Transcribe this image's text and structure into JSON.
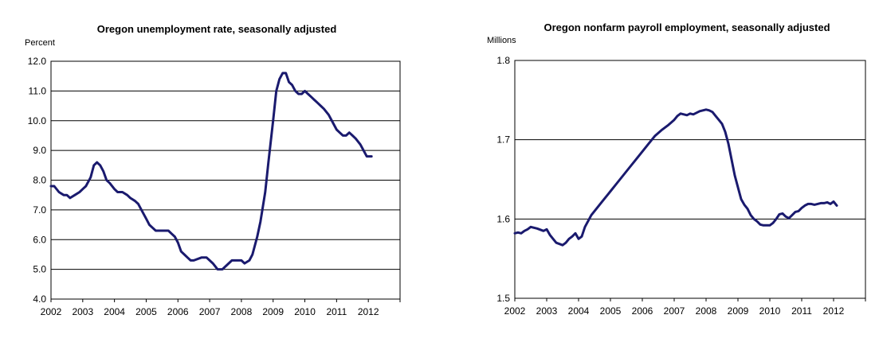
{
  "chart_data": [
    {
      "type": "line",
      "title": "Oregon unemployment rate, seasonally adjusted",
      "ylabel": "Percent",
      "xlabel": "",
      "ylim": [
        4.0,
        12.0
      ],
      "xlim": [
        2002,
        2013
      ],
      "yticks": [
        4.0,
        5.0,
        6.0,
        7.0,
        8.0,
        9.0,
        10.0,
        11.0,
        12.0
      ],
      "ytick_labels": [
        "4.0",
        "5.0",
        "6.0",
        "7.0",
        "8.0",
        "9.0",
        "10.0",
        "11.0",
        "12.0"
      ],
      "xticks": [
        2002,
        2003,
        2004,
        2005,
        2006,
        2007,
        2008,
        2009,
        2010,
        2011,
        2012
      ],
      "xtick_labels": [
        "2002",
        "2003",
        "2004",
        "2005",
        "2006",
        "2007",
        "2008",
        "2009",
        "2010",
        "2011",
        "2012"
      ],
      "grid": true,
      "color": "#1a1a6e",
      "series": [
        {
          "name": "Unemployment rate",
          "x": [
            2002.0,
            2002.1,
            2002.25,
            2002.4,
            2002.5,
            2002.6,
            2002.75,
            2002.9,
            2003.0,
            2003.1,
            2003.25,
            2003.35,
            2003.45,
            2003.55,
            2003.65,
            2003.75,
            2003.85,
            2004.0,
            2004.1,
            2004.25,
            2004.4,
            2004.5,
            2004.65,
            2004.75,
            2004.85,
            2005.0,
            2005.1,
            2005.2,
            2005.3,
            2005.5,
            2005.6,
            2005.7,
            2005.8,
            2005.9,
            2006.0,
            2006.1,
            2006.2,
            2006.3,
            2006.4,
            2006.5,
            2006.75,
            2006.9,
            2007.0,
            2007.1,
            2007.25,
            2007.4,
            2007.5,
            2007.7,
            2007.85,
            2008.0,
            2008.1,
            2008.25,
            2008.35,
            2008.5,
            2008.6,
            2008.75,
            2008.85,
            2009.0,
            2009.1,
            2009.2,
            2009.3,
            2009.4,
            2009.5,
            2009.6,
            2009.7,
            2009.8,
            2009.9,
            2010.0,
            2010.1,
            2010.2,
            2010.3,
            2010.4,
            2010.5,
            2010.6,
            2010.75,
            2010.9,
            2011.0,
            2011.1,
            2011.2,
            2011.3,
            2011.4,
            2011.5,
            2011.6,
            2011.75,
            2011.85,
            2011.95,
            2012.0,
            2012.1
          ],
          "values": [
            7.8,
            7.8,
            7.6,
            7.5,
            7.5,
            7.4,
            7.5,
            7.6,
            7.7,
            7.8,
            8.1,
            8.5,
            8.6,
            8.5,
            8.3,
            8.0,
            7.9,
            7.7,
            7.6,
            7.6,
            7.5,
            7.4,
            7.3,
            7.2,
            7.0,
            6.7,
            6.5,
            6.4,
            6.3,
            6.3,
            6.3,
            6.3,
            6.2,
            6.1,
            5.9,
            5.6,
            5.5,
            5.4,
            5.3,
            5.3,
            5.4,
            5.4,
            5.3,
            5.2,
            5.0,
            5.0,
            5.1,
            5.3,
            5.3,
            5.3,
            5.2,
            5.3,
            5.5,
            6.1,
            6.6,
            7.6,
            8.6,
            10.0,
            11.0,
            11.4,
            11.6,
            11.6,
            11.3,
            11.2,
            11.0,
            10.9,
            10.9,
            11.0,
            10.9,
            10.8,
            10.7,
            10.6,
            10.5,
            10.4,
            10.2,
            9.9,
            9.7,
            9.6,
            9.5,
            9.5,
            9.6,
            9.5,
            9.4,
            9.2,
            9.0,
            8.8,
            8.8,
            8.8
          ]
        }
      ]
    },
    {
      "type": "line",
      "title": "Oregon nonfarm payroll employment, seasonally adjusted",
      "ylabel": "Millions",
      "xlabel": "",
      "ylim": [
        1.5,
        1.8
      ],
      "xlim": [
        2002,
        2013
      ],
      "yticks": [
        1.5,
        1.6,
        1.7,
        1.8
      ],
      "ytick_labels": [
        "1.5",
        "1.6",
        "1.7",
        "1.8"
      ],
      "xticks": [
        2002,
        2003,
        2004,
        2005,
        2006,
        2007,
        2008,
        2009,
        2010,
        2011,
        2012
      ],
      "xtick_labels": [
        "2002",
        "2003",
        "2004",
        "2005",
        "2006",
        "2007",
        "2008",
        "2009",
        "2010",
        "2011",
        "2012"
      ],
      "grid": true,
      "color": "#1a1a6e",
      "series": [
        {
          "name": "Nonfarm payroll employment",
          "x": [
            2002.0,
            2002.1,
            2002.2,
            2002.3,
            2002.4,
            2002.5,
            2002.7,
            2002.9,
            2003.0,
            2003.1,
            2003.2,
            2003.3,
            2003.5,
            2003.6,
            2003.7,
            2003.8,
            2003.9,
            2004.0,
            2004.1,
            2004.2,
            2004.4,
            2004.6,
            2004.8,
            2005.0,
            2005.2,
            2005.4,
            2005.6,
            2005.8,
            2006.0,
            2006.2,
            2006.4,
            2006.6,
            2006.8,
            2007.0,
            2007.1,
            2007.2,
            2007.3,
            2007.4,
            2007.5,
            2007.6,
            2007.7,
            2007.8,
            2007.9,
            2008.0,
            2008.1,
            2008.2,
            2008.3,
            2008.4,
            2008.5,
            2008.6,
            2008.7,
            2008.8,
            2008.9,
            2009.0,
            2009.1,
            2009.2,
            2009.3,
            2009.4,
            2009.5,
            2009.6,
            2009.7,
            2009.8,
            2010.0,
            2010.1,
            2010.2,
            2010.3,
            2010.4,
            2010.5,
            2010.6,
            2010.7,
            2010.8,
            2010.9,
            2011.0,
            2011.1,
            2011.2,
            2011.3,
            2011.4,
            2011.5,
            2011.6,
            2011.7,
            2011.8,
            2011.9,
            2012.0,
            2012.1
          ],
          "values": [
            1.582,
            1.583,
            1.582,
            1.585,
            1.587,
            1.59,
            1.588,
            1.585,
            1.587,
            1.58,
            1.575,
            1.57,
            1.567,
            1.57,
            1.575,
            1.578,
            1.582,
            1.575,
            1.578,
            1.59,
            1.605,
            1.615,
            1.625,
            1.635,
            1.645,
            1.655,
            1.665,
            1.675,
            1.685,
            1.695,
            1.705,
            1.712,
            1.718,
            1.725,
            1.73,
            1.733,
            1.732,
            1.731,
            1.733,
            1.732,
            1.734,
            1.736,
            1.737,
            1.738,
            1.737,
            1.735,
            1.73,
            1.725,
            1.72,
            1.71,
            1.695,
            1.675,
            1.655,
            1.64,
            1.625,
            1.618,
            1.613,
            1.605,
            1.6,
            1.597,
            1.593,
            1.592,
            1.592,
            1.595,
            1.6,
            1.606,
            1.607,
            1.603,
            1.601,
            1.605,
            1.609,
            1.61,
            1.614,
            1.617,
            1.619,
            1.619,
            1.618,
            1.619,
            1.62,
            1.62,
            1.621,
            1.619,
            1.622,
            1.617
          ]
        }
      ]
    }
  ]
}
